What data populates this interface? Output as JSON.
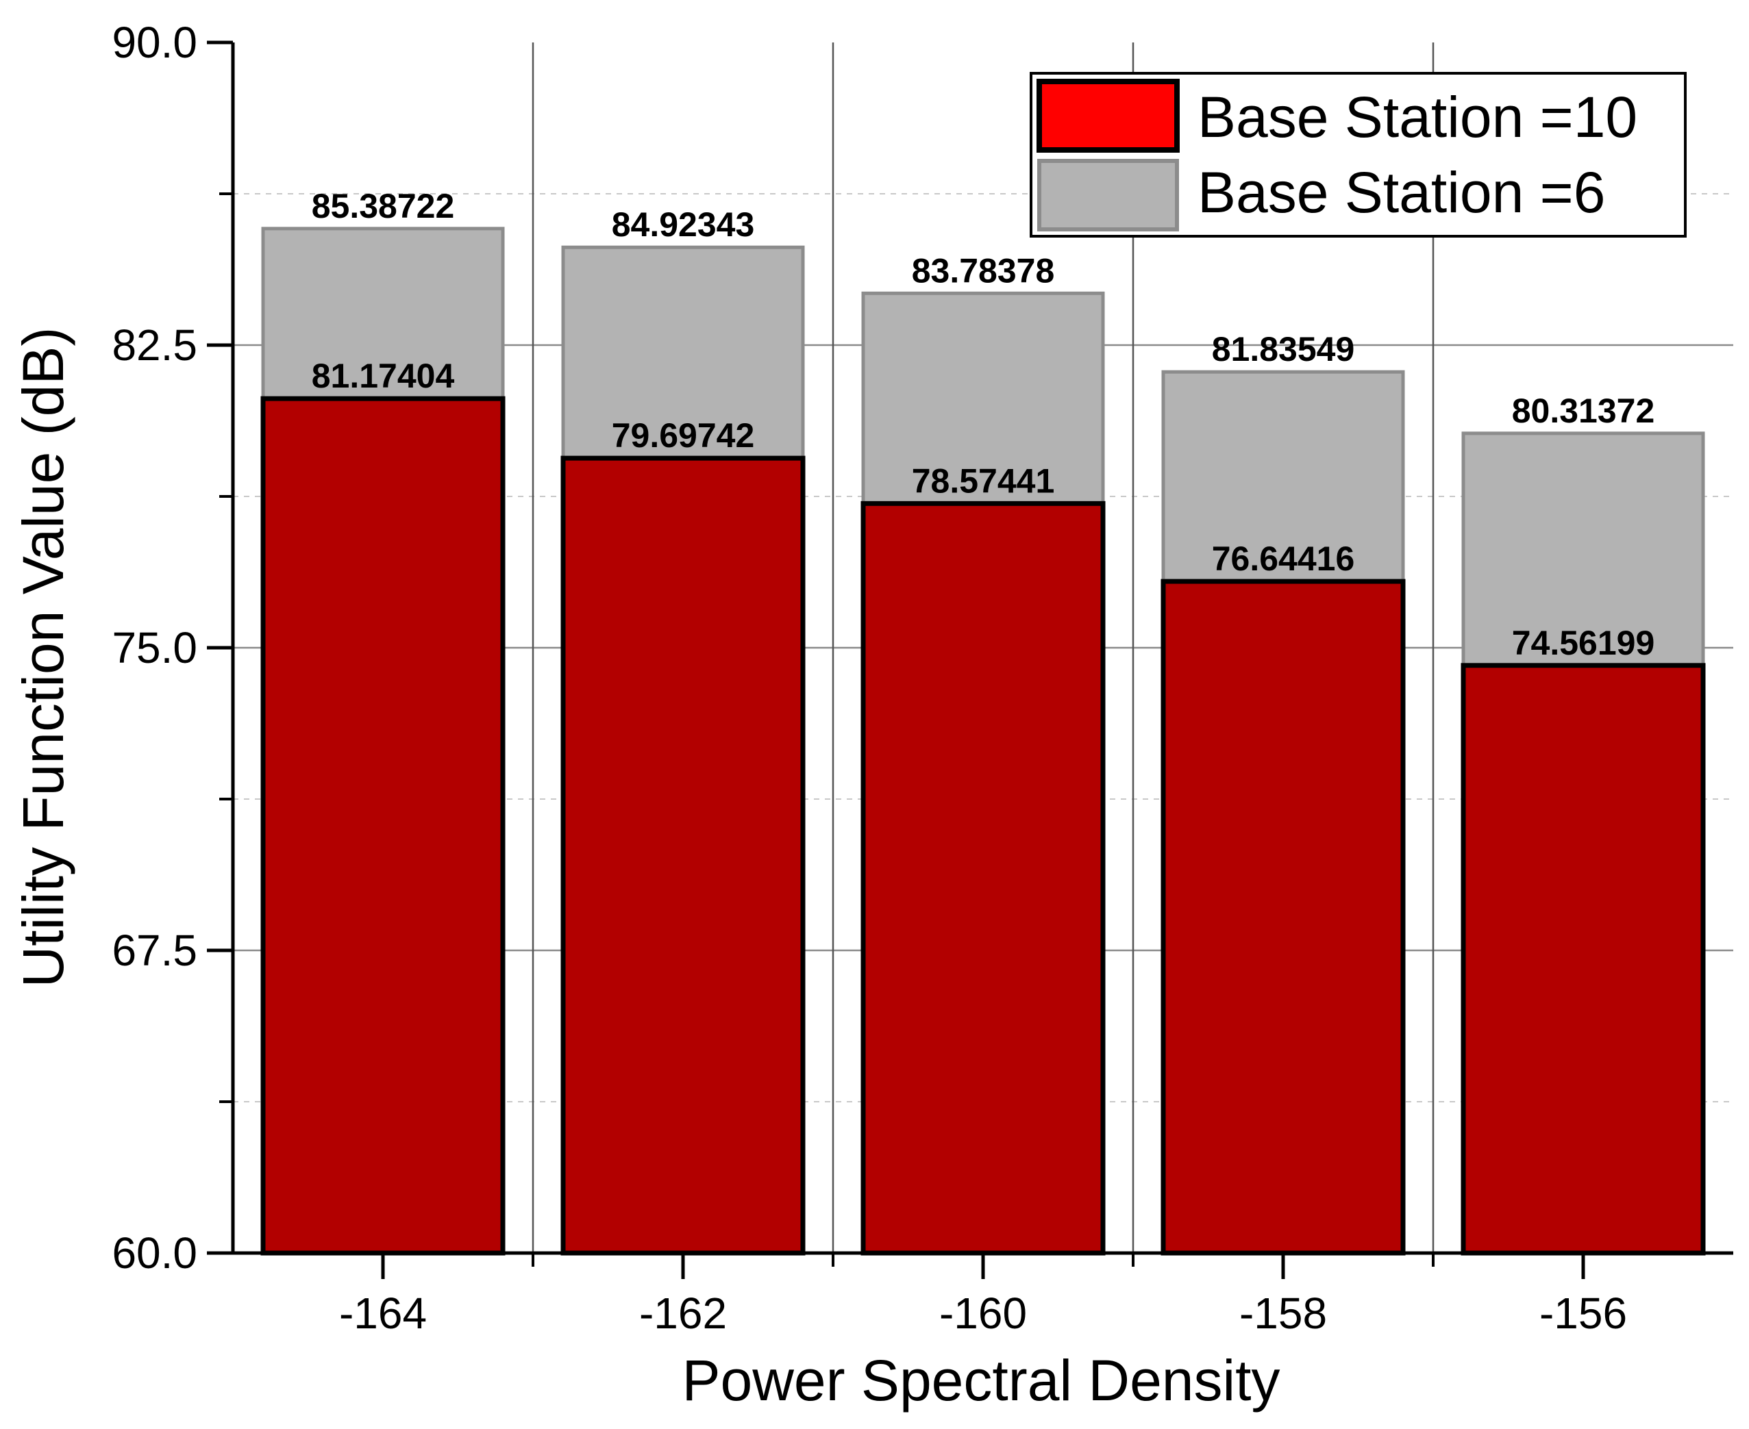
{
  "chart_data": {
    "type": "bar",
    "title": "",
    "xlabel": "Power Spectral Density",
    "ylabel": "Utility Function Value (dB)",
    "categories": [
      "-164",
      "-162",
      "-160",
      "-158",
      "-156"
    ],
    "ylim": [
      60.0,
      90.0
    ],
    "yticks": [
      "60.0",
      "67.5",
      "75.0",
      "82.5",
      "90.0"
    ],
    "series": [
      {
        "name": "Base Station =6",
        "color": "#b3b3b3",
        "values": [
          85.38722,
          84.92343,
          83.78378,
          81.83549,
          80.31372
        ],
        "labels": [
          "85.38722",
          "84.92343",
          "83.78378",
          "81.83549",
          "80.31372"
        ]
      },
      {
        "name": "Base Station =10",
        "color": "#b20000",
        "legend_color": "#ff0000",
        "values": [
          81.17404,
          79.69742,
          78.57441,
          76.64416,
          74.56199
        ],
        "labels": [
          "81.17404",
          "79.69742",
          "78.57441",
          "76.64416",
          "74.56199"
        ]
      }
    ],
    "grid": true,
    "legend_position": "top-right"
  }
}
